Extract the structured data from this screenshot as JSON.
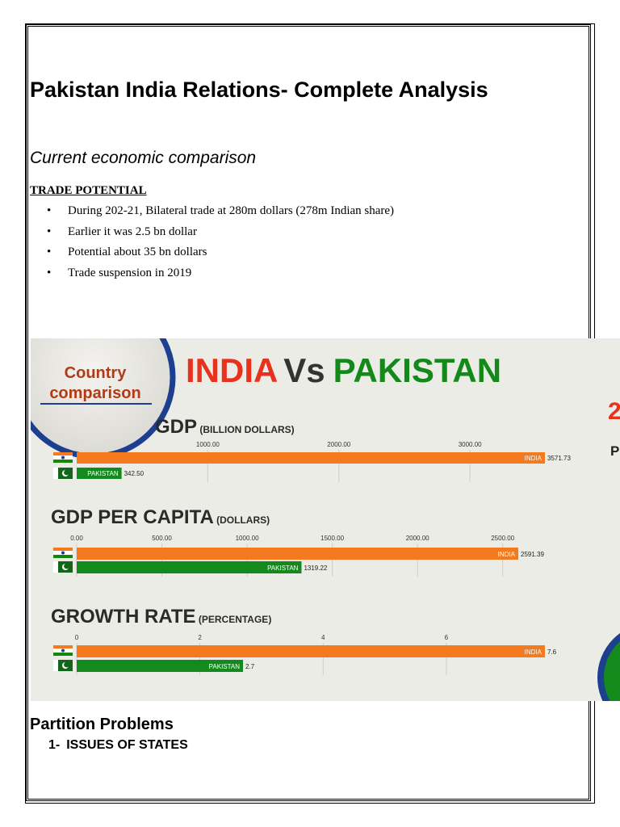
{
  "document": {
    "title": "Pakistan India Relations- Complete Analysis",
    "subtitle": "Current economic comparison",
    "trade_heading": "TRADE  POTENTIAL",
    "bullets": [
      "During 202-21, Bilateral trade at 280m dollars (278m Indian share)",
      "Earlier it was 2.5 bn dollar",
      "Potential about 35 bn dollars",
      "Trade suspension in 2019"
    ],
    "bullet_symbol": "•",
    "partition_heading": "Partition Problems",
    "partition_item_number": "1-",
    "partition_item_label": "ISSUES OF STATES"
  },
  "infographic": {
    "badge_line1": "Country",
    "badge_line2": "comparison",
    "heading_india": "INDIA",
    "heading_vs": "Vs",
    "heading_pakistan": "PAKISTAN",
    "right_edge_fragment_1": "2",
    "right_edge_fragment_2": "P",
    "colors": {
      "india": "#f47a1f",
      "pakistan": "#128a1c",
      "heading_red": "#e8321e",
      "heading_green": "#13891a",
      "badge_ring": "#1c3f8f"
    }
  },
  "chart_data": [
    {
      "type": "bar",
      "title": "GDP",
      "unit": "(BILLION DOLLARS)",
      "series": [
        {
          "name": "INDIA",
          "value": 3571.73,
          "label": "3571.73"
        },
        {
          "name": "PAKISTAN",
          "value": 342.5,
          "label": "342.50"
        }
      ],
      "ticks": [
        "1000.00",
        "2000.00",
        "3000.00"
      ],
      "tick_values": [
        1000,
        2000,
        3000
      ],
      "xlim": [
        0,
        3571.73
      ]
    },
    {
      "type": "bar",
      "title": "GDP PER CAPITA",
      "unit": "(DOLLARS)",
      "series": [
        {
          "name": "INDIA",
          "value": 2591.39,
          "label": "2591.39"
        },
        {
          "name": "PAKISTAN",
          "value": 1319.22,
          "label": "1319.22"
        }
      ],
      "ticks": [
        "0.00",
        "500.00",
        "1000.00",
        "1500.00",
        "2000.00",
        "2500.00"
      ],
      "tick_values": [
        0,
        500,
        1000,
        1500,
        2000,
        2500
      ],
      "xlim": [
        0,
        2591.39
      ]
    },
    {
      "type": "bar",
      "title": "GROWTH RATE",
      "unit": "(PERCENTAGE)",
      "series": [
        {
          "name": "INDIA",
          "value": 7.6,
          "label": "7.6"
        },
        {
          "name": "PAKISTAN",
          "value": 2.7,
          "label": "2.7"
        }
      ],
      "ticks": [
        "0",
        "2",
        "4",
        "6"
      ],
      "tick_values": [
        0,
        2,
        4,
        6
      ],
      "xlim": [
        0,
        7.6
      ]
    }
  ]
}
